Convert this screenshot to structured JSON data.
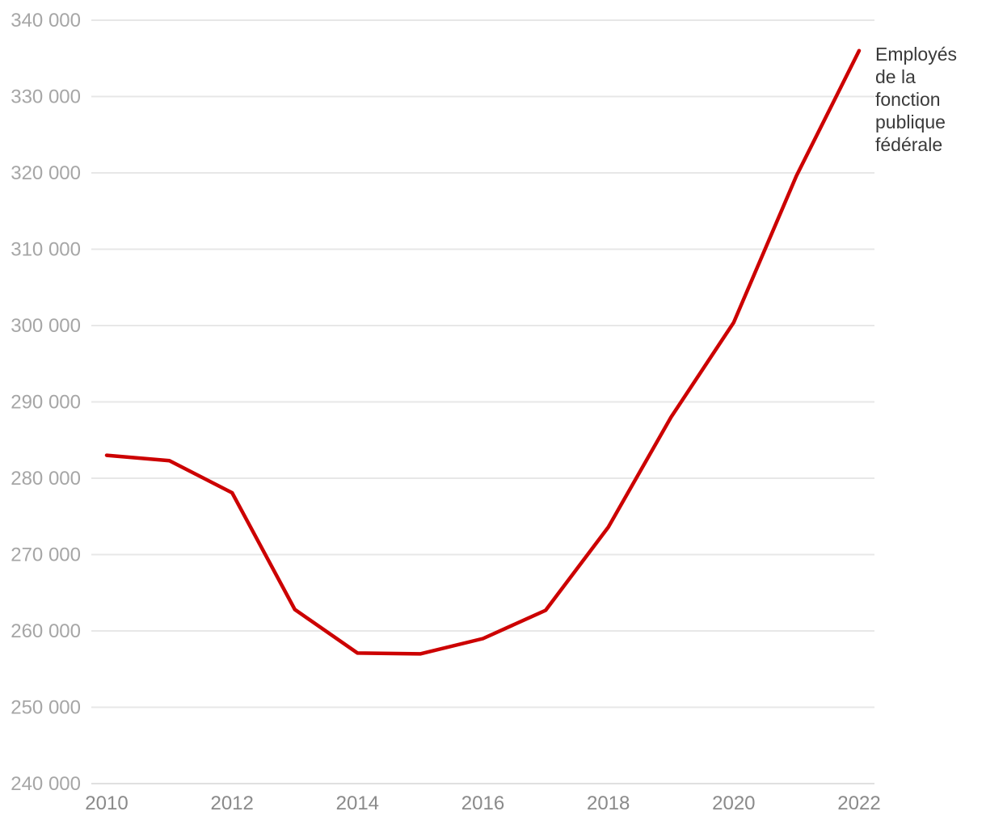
{
  "chart_data": {
    "type": "line",
    "title": "",
    "series_label": "Employés de la fonction publique fédérale",
    "x": [
      2010,
      2011,
      2012,
      2013,
      2014,
      2015,
      2016,
      2017,
      2018,
      2019,
      2020,
      2021,
      2022
    ],
    "values": [
      283000,
      282300,
      278100,
      262800,
      257100,
      257000,
      259000,
      262700,
      273600,
      288000,
      300400,
      319600,
      336000
    ],
    "xlim": [
      2010,
      2022
    ],
    "ylim": [
      240000,
      340000
    ],
    "y_ticks": [
      340000,
      330000,
      320000,
      310000,
      300000,
      290000,
      280000,
      270000,
      260000,
      250000,
      240000
    ],
    "y_tick_labels": [
      "340 000",
      "330 000",
      "320 000",
      "310 000",
      "300 000",
      "290 000",
      "280 000",
      "270 000",
      "260 000",
      "250 000",
      "240 000"
    ],
    "x_ticks": [
      2010,
      2012,
      2014,
      2016,
      2018,
      2020,
      2022
    ],
    "x_tick_labels": [
      "2010",
      "2012",
      "2014",
      "2016",
      "2018",
      "2020",
      "2022"
    ],
    "grid": "horizontal-only",
    "legend_position": "end-of-line-right",
    "colors": {
      "line": "#cc0000",
      "grid": "#e7e7e7",
      "y_tick_text": "#a6a6a6",
      "x_tick_text": "#8a8a8a",
      "label_text": "#3a3a3a",
      "background": "#ffffff"
    }
  }
}
